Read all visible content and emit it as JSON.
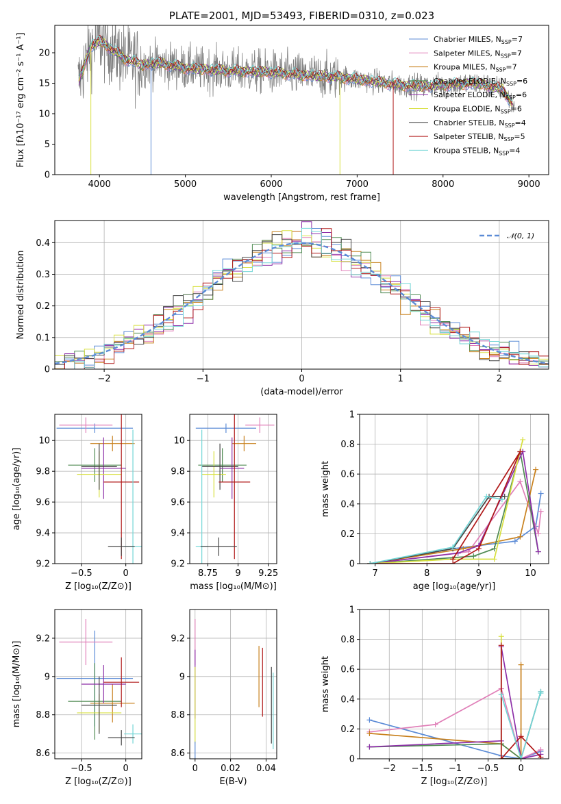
{
  "chart_data": [
    {
      "id": "spectrum",
      "type": "line",
      "title": "PLATE=2001, MJD=53493, FIBERID=0310, z=0.023",
      "xlabel": "wavelength [Angstrom, rest frame]",
      "ylabel": "Flux [fλ10⁻¹⁷ erg cm⁻² s⁻¹ A⁻¹]",
      "xlim": [
        3480,
        9230
      ],
      "ylim": [
        0,
        24.5
      ],
      "xticks": [
        4000,
        5000,
        6000,
        7000,
        8000,
        9000
      ],
      "yticks": [
        0,
        5,
        10,
        15,
        20
      ],
      "grid": false,
      "legend_position": "top-right",
      "continuum": {
        "x": [
          3750,
          3900,
          4000,
          4150,
          4300,
          4500,
          4700,
          5000,
          5300,
          5600,
          6000,
          6400,
          6800,
          7200,
          7500,
          7800,
          8100,
          8400,
          8700,
          8830
        ],
        "y": [
          15,
          21,
          22,
          20.5,
          19,
          18,
          18.3,
          17.5,
          17.2,
          17,
          16.8,
          16.3,
          16,
          15.3,
          14.7,
          14.5,
          14.8,
          15,
          14,
          11
        ]
      },
      "dips": [
        {
          "series": 5,
          "x": 3900,
          "y": 0
        },
        {
          "series": 0,
          "x": 4600,
          "y": 0
        },
        {
          "series": 5,
          "x": 6800,
          "y": 0
        },
        {
          "series": 7,
          "x": 7420,
          "y": 0
        }
      ],
      "series": [
        {
          "name": "Chabrier MILES, N_SSP=7",
          "color": "#5b8bd6"
        },
        {
          "name": "Salpeter MILES, N_SSP=7",
          "color": "#e07fb8"
        },
        {
          "name": "Kroupa MILES, N_SSP=7",
          "color": "#c8801c"
        },
        {
          "name": "Chabrier ELODIE, N_SSP=6",
          "color": "#4f8a52"
        },
        {
          "name": "Salpeter ELODIE, N_SSP=6",
          "color": "#8d2fa8"
        },
        {
          "name": "Kroupa ELODIE, N_SSP=6",
          "color": "#d8e040"
        },
        {
          "name": "Chabrier STELIB, N_SSP=4",
          "color": "#444444"
        },
        {
          "name": "Salpeter STELIB, N_SSP=5",
          "color": "#b01818"
        },
        {
          "name": "Kroupa STELIB, N_SSP=4",
          "color": "#72d6d6"
        }
      ],
      "data_color": "#808080"
    },
    {
      "id": "residuals",
      "type": "line",
      "xlabel": "(data-model)/error",
      "ylabel": "Normed distribution",
      "xlim": [
        -2.5,
        2.5
      ],
      "ylim": [
        0,
        0.47
      ],
      "xticks": [
        -2,
        -1,
        0,
        1,
        2
      ],
      "yticks": [
        0.0,
        0.1,
        0.2,
        0.3,
        0.4
      ],
      "grid": true,
      "legend_position": "top-right",
      "gaussian_label": "𝒩(0, 1)",
      "gaussian_color": "#5b8bd6",
      "bin_width": 0.1
    },
    {
      "id": "age-vs-Z",
      "type": "scatter",
      "xlabel": "Z [log₁₀(Z/Z⊙)]",
      "ylabel": "age  [log₁₀(age/yr)]",
      "xlim": [
        -0.8,
        0.18
      ],
      "ylim": [
        9.2,
        10.17
      ],
      "xticks": [
        -0.5,
        0.0
      ],
      "yticks": [
        9.2,
        9.4,
        9.6,
        9.8,
        10.0
      ],
      "grid": true,
      "points": [
        {
          "series": 0,
          "x": -0.35,
          "y": 10.08,
          "xerr": 0.43,
          "yerr": 0.03
        },
        {
          "series": 1,
          "x": -0.45,
          "y": 10.1,
          "xerr": 0.3,
          "yerr": 0.05
        },
        {
          "series": 2,
          "x": -0.15,
          "y": 9.98,
          "xerr": 0.25,
          "yerr": 0.05
        },
        {
          "series": 3,
          "x": -0.35,
          "y": 9.84,
          "xerr": 0.3,
          "yerr": 0.11
        },
        {
          "series": 4,
          "x": -0.25,
          "y": 9.82,
          "xerr": 0.25,
          "yerr": 0.2
        },
        {
          "series": 5,
          "x": -0.3,
          "y": 9.78,
          "xerr": 0.25,
          "yerr": 0.15
        },
        {
          "series": 6,
          "x": -0.3,
          "y": 9.83,
          "xerr": 0.2,
          "yerr": 0.15
        },
        {
          "series": 7,
          "x": -0.05,
          "y": 9.73,
          "xerr": 0.2,
          "yerr": 0.5
        },
        {
          "series": 8,
          "x": 0.08,
          "y": 9.31,
          "xerr": 0.1,
          "yerr": 0.76
        },
        {
          "series": 6,
          "x": -0.05,
          "y": 9.31,
          "xerr": 0.15,
          "yerr": 0.06
        }
      ]
    },
    {
      "id": "age-vs-mass",
      "type": "scatter",
      "xlabel": "mass [log₁₀(M/M⊙)]",
      "ylabel": "",
      "xlim": [
        8.6,
        9.32
      ],
      "ylim": [
        9.2,
        10.17
      ],
      "xticks": [
        8.75,
        9.0,
        9.25
      ],
      "yticks": [
        9.2,
        9.4,
        9.6,
        9.8,
        10.0
      ],
      "grid": true,
      "points": [
        {
          "series": 0,
          "x": 8.9,
          "y": 10.08,
          "xerr": 0.25,
          "yerr": 0.03
        },
        {
          "series": 1,
          "x": 9.18,
          "y": 10.1,
          "xerr": 0.12,
          "yerr": 0.05
        },
        {
          "series": 2,
          "x": 9.05,
          "y": 9.98,
          "xerr": 0.1,
          "yerr": 0.05
        },
        {
          "series": 3,
          "x": 8.87,
          "y": 9.84,
          "xerr": 0.2,
          "yerr": 0.11
        },
        {
          "series": 4,
          "x": 8.95,
          "y": 9.82,
          "xerr": 0.1,
          "yerr": 0.2
        },
        {
          "series": 5,
          "x": 8.8,
          "y": 9.78,
          "xerr": 0.1,
          "yerr": 0.15
        },
        {
          "series": 6,
          "x": 8.85,
          "y": 9.83,
          "xerr": 0.15,
          "yerr": 0.15
        },
        {
          "series": 7,
          "x": 8.97,
          "y": 9.73,
          "xerr": 0.13,
          "yerr": 0.5
        },
        {
          "series": 8,
          "x": 8.7,
          "y": 9.31,
          "xerr": 0.05,
          "yerr": 0.76
        },
        {
          "series": 6,
          "x": 8.84,
          "y": 9.31,
          "xerr": 0.15,
          "yerr": 0.06
        }
      ]
    },
    {
      "id": "massweight-vs-age",
      "type": "line",
      "xlabel": "age  [log₁₀(age/yr)]",
      "ylabel": "mass weight",
      "xlim": [
        6.7,
        10.35
      ],
      "ylim": [
        0,
        1.0
      ],
      "xticks": [
        7,
        8,
        9,
        10
      ],
      "yticks": [
        0.0,
        0.2,
        0.4,
        0.6,
        0.8,
        1.0
      ],
      "grid": true,
      "series": [
        {
          "series": 0,
          "x": [
            6.9,
            8.5,
            9.7,
            10.1,
            10.2
          ],
          "y": [
            0.0,
            0.1,
            0.15,
            0.25,
            0.47
          ]
        },
        {
          "series": 1,
          "x": [
            6.9,
            8.8,
            9.8,
            10.15,
            10.2
          ],
          "y": [
            0.0,
            0.08,
            0.55,
            0.2,
            0.35
          ]
        },
        {
          "series": 2,
          "x": [
            6.9,
            8.7,
            9.8,
            10.1
          ],
          "y": [
            0.0,
            0.1,
            0.18,
            0.63
          ]
        },
        {
          "series": 3,
          "x": [
            6.9,
            8.9,
            9.3,
            9.8,
            10.15
          ],
          "y": [
            0.0,
            0.05,
            0.1,
            0.75,
            0.08
          ]
        },
        {
          "series": 4,
          "x": [
            6.9,
            8.6,
            9.0,
            9.85,
            10.15
          ],
          "y": [
            0.0,
            0.07,
            0.12,
            0.75,
            0.08
          ]
        },
        {
          "series": 5,
          "x": [
            6.9,
            8.5,
            9.3,
            9.85
          ],
          "y": [
            0.0,
            0.03,
            0.03,
            0.83
          ]
        },
        {
          "series": 6,
          "x": [
            6.9,
            8.5,
            9.2,
            9.5
          ],
          "y": [
            0.0,
            0.1,
            0.45,
            0.45
          ]
        },
        {
          "series": 7,
          "x": [
            6.9,
            8.5,
            9.0,
            9.8,
            8.5
          ],
          "y": [
            0.0,
            0.0,
            0.1,
            0.75,
            0.03
          ]
        },
        {
          "series": 8,
          "x": [
            6.9,
            8.5,
            9.15,
            9.45
          ],
          "y": [
            0.0,
            0.11,
            0.45,
            0.43
          ]
        }
      ]
    },
    {
      "id": "mass-vs-Z",
      "type": "scatter",
      "xlabel": "Z [log₁₀(Z/Z⊙)]",
      "ylabel": "mass [log₁₀(M/M⊙)]",
      "xlim": [
        -0.8,
        0.18
      ],
      "ylim": [
        8.57,
        9.35
      ],
      "xticks": [
        -0.5,
        0.0
      ],
      "yticks": [
        8.6,
        8.8,
        9.0,
        9.2
      ],
      "grid": true,
      "points": [
        {
          "series": 0,
          "x": -0.35,
          "y": 8.99,
          "xerr": 0.43,
          "yerr": 0.25
        },
        {
          "series": 1,
          "x": -0.45,
          "y": 9.18,
          "xerr": 0.3,
          "yerr": 0.12
        },
        {
          "series": 2,
          "x": -0.15,
          "y": 8.86,
          "xerr": 0.25,
          "yerr": 0.1
        },
        {
          "series": 3,
          "x": -0.35,
          "y": 8.87,
          "xerr": 0.3,
          "yerr": 0.2
        },
        {
          "series": 4,
          "x": -0.25,
          "y": 8.96,
          "xerr": 0.25,
          "yerr": 0.1
        },
        {
          "series": 5,
          "x": -0.3,
          "y": 8.81,
          "xerr": 0.25,
          "yerr": 0.1
        },
        {
          "series": 6,
          "x": -0.3,
          "y": 8.85,
          "xerr": 0.2,
          "yerr": 0.15
        },
        {
          "series": 7,
          "x": -0.05,
          "y": 8.97,
          "xerr": 0.2,
          "yerr": 0.13
        },
        {
          "series": 8,
          "x": 0.08,
          "y": 8.7,
          "xerr": 0.1,
          "yerr": 0.05
        },
        {
          "series": 6,
          "x": -0.05,
          "y": 8.68,
          "xerr": 0.15,
          "yerr": 0.04
        }
      ]
    },
    {
      "id": "mass-vs-EBV",
      "type": "scatter",
      "xlabel": "E(B-V)",
      "ylabel": "",
      "xlim": [
        -0.003,
        0.046
      ],
      "ylim": [
        8.57,
        9.35
      ],
      "xticks": [
        0.0,
        0.02,
        0.04
      ],
      "yticks": [
        8.6,
        8.8,
        9.0,
        9.2
      ],
      "grid": true,
      "points": [
        {
          "series": 1,
          "x": 0.0,
          "y": 9.18,
          "xerr": 0,
          "yerr": 0.12
        },
        {
          "series": 4,
          "x": 0.0,
          "y": 8.96,
          "xerr": 0,
          "yerr": 0.18
        },
        {
          "series": 5,
          "x": 0.0,
          "y": 8.85,
          "xerr": 0,
          "yerr": 0.2
        },
        {
          "series": 0,
          "x": 0.0,
          "y": 8.6,
          "xerr": 0,
          "yerr": 0.06
        },
        {
          "series": 2,
          "x": 0.036,
          "y": 9.0,
          "xerr": 0,
          "yerr": 0.16
        },
        {
          "series": 7,
          "x": 0.038,
          "y": 8.97,
          "xerr": 0,
          "yerr": 0.18
        },
        {
          "series": 6,
          "x": 0.043,
          "y": 8.85,
          "xerr": 0,
          "yerr": 0.2
        },
        {
          "series": 8,
          "x": 0.044,
          "y": 8.82,
          "xerr": 0,
          "yerr": 0.2
        }
      ]
    },
    {
      "id": "massweight-vs-Z",
      "type": "line",
      "xlabel": "Z [log₁₀(Z/Z⊙)]",
      "ylabel": "mass weight",
      "xlim": [
        -2.45,
        0.42
      ],
      "ylim": [
        0,
        1.0
      ],
      "xticks": [
        -2.0,
        -1.5,
        -1.0,
        -0.5,
        0.0
      ],
      "yticks": [
        0.0,
        0.2,
        0.4,
        0.6,
        0.8,
        1.0
      ],
      "grid": true,
      "series": [
        {
          "series": 0,
          "x": [
            -2.3,
            -0.3,
            0.0,
            0.3
          ],
          "y": [
            0.26,
            0.02,
            0.0,
            0.05
          ]
        },
        {
          "series": 1,
          "x": [
            -2.3,
            -1.3,
            -0.3,
            0.0,
            0.3
          ],
          "y": [
            0.18,
            0.23,
            0.47,
            0.0,
            0.06
          ]
        },
        {
          "series": 2,
          "x": [
            -2.3,
            -0.3,
            0.0,
            0.0
          ],
          "y": [
            0.17,
            0.1,
            0.0,
            0.63
          ]
        },
        {
          "series": 3,
          "x": [
            -2.3,
            -0.3,
            0.0
          ],
          "y": [
            0.08,
            0.1,
            0.0
          ]
        },
        {
          "series": 4,
          "x": [
            -2.3,
            -0.3,
            -0.3,
            0.0,
            0.3
          ],
          "y": [
            0.08,
            0.12,
            0.75,
            0.0,
            0.03
          ]
        },
        {
          "series": 5,
          "x": [
            -0.3,
            -0.3,
            0.0
          ],
          "y": [
            0.82,
            0.0,
            0.0
          ]
        },
        {
          "series": 6,
          "x": [
            -0.3,
            0.0,
            0.3
          ],
          "y": [
            0.0,
            0.0,
            0.45
          ]
        },
        {
          "series": 7,
          "x": [
            -0.3,
            -0.3,
            0.0,
            0.3
          ],
          "y": [
            0.76,
            0.0,
            0.15,
            0.01
          ]
        },
        {
          "series": 8,
          "x": [
            -0.3,
            0.0,
            0.3,
            0.3
          ],
          "y": [
            0.43,
            0.0,
            0.45,
            0.44
          ]
        }
      ]
    }
  ]
}
